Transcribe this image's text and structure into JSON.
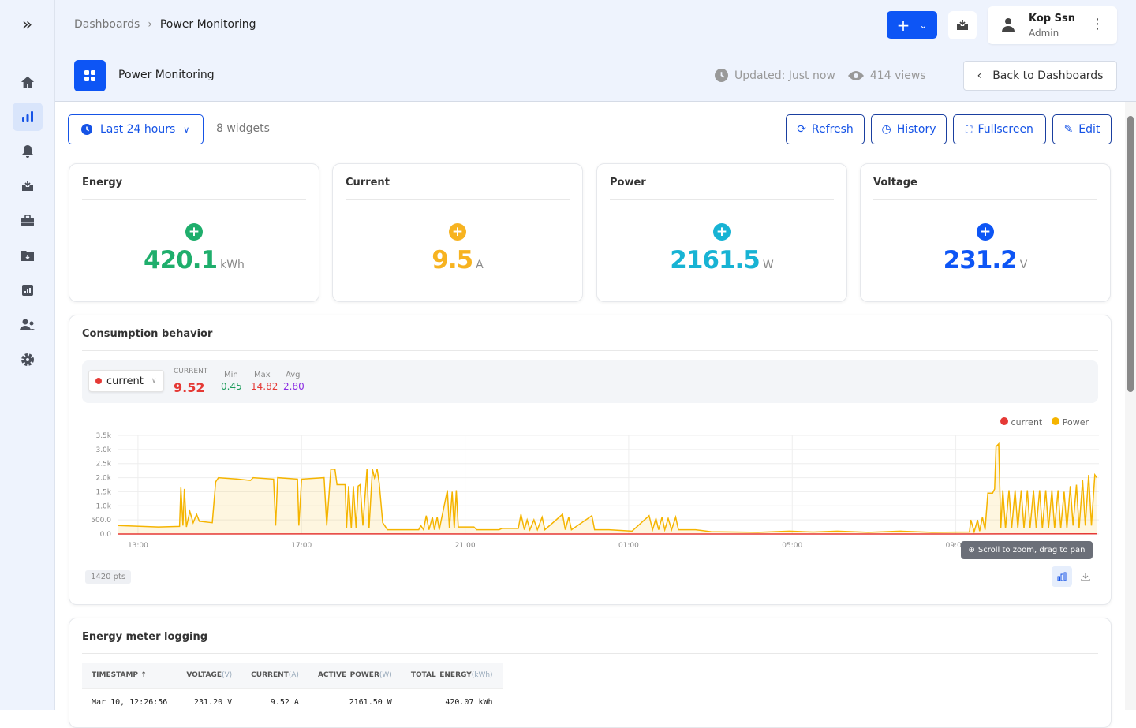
{
  "header": {
    "breadcrumb": [
      "Dashboards",
      "Power Monitoring"
    ],
    "user": {
      "name": "Kop Ssn",
      "role": "Admin"
    }
  },
  "subheader": {
    "title": "Power Monitoring",
    "updated": "Updated: Just now",
    "views": "414 views",
    "back_label": "Back to Dashboards"
  },
  "toolbar": {
    "range": "Last 24 hours",
    "widgets": "8 widgets",
    "refresh": "Refresh",
    "history": "History",
    "fullscreen": "Fullscreen",
    "edit": "Edit"
  },
  "kpis": [
    {
      "title": "Energy",
      "value": "420.1",
      "unit": "kWh",
      "color": "#1fae6c"
    },
    {
      "title": "Current",
      "value": "9.5",
      "unit": "A",
      "color": "#f7b320"
    },
    {
      "title": "Power",
      "value": "2161.5",
      "unit": "W",
      "color": "#17b3d4"
    },
    {
      "title": "Voltage",
      "value": "231.2",
      "unit": "V",
      "color": "#0d55f5"
    }
  ],
  "consumption": {
    "title": "Consumption behavior",
    "selected": "current",
    "current_label": "CURRENT",
    "current_value": "9.52",
    "min_label": "Min",
    "min": "0.45",
    "max_label": "Max",
    "max": "14.82",
    "avg_label": "Avg",
    "avg": "2.80",
    "hint": "Scroll to zoom, drag to pan",
    "points": "1420 pts"
  },
  "chart_data": {
    "type": "area",
    "xlim": [
      "12:30",
      "12:30"
    ],
    "ylim": [
      0,
      3500
    ],
    "yticks": [
      "0.0",
      "500.0",
      "1.0k",
      "1.5k",
      "2.0k",
      "2.5k",
      "3.0k",
      "3.5k"
    ],
    "xticks": [
      "13:00",
      "17:00",
      "21:00",
      "01:00",
      "05:00",
      "09:00"
    ],
    "grid": true,
    "legend": "top-right",
    "series": [
      {
        "name": "current",
        "color": "#e53935",
        "points": [
          [
            "12:30",
            1
          ],
          [
            "18:00",
            3
          ],
          [
            "00:00",
            1
          ],
          [
            "09:00",
            1
          ],
          [
            "12:27",
            9.52
          ]
        ]
      },
      {
        "name": "Power",
        "color": "#f5b400",
        "points": [
          [
            "12:30",
            300
          ],
          [
            "13:30",
            250
          ],
          [
            "14:01",
            270
          ],
          [
            "14:03",
            1650
          ],
          [
            "14:06",
            300
          ],
          [
            "14:08",
            1600
          ],
          [
            "14:11",
            250
          ],
          [
            "14:16",
            800
          ],
          [
            "14:21",
            400
          ],
          [
            "14:26",
            700
          ],
          [
            "14:30",
            450
          ],
          [
            "14:49",
            400
          ],
          [
            "14:54",
            1850
          ],
          [
            "14:58",
            2000
          ],
          [
            "15:26",
            1950
          ],
          [
            "15:45",
            1900
          ],
          [
            "15:49",
            2000
          ],
          [
            "16:19",
            1950
          ],
          [
            "16:22",
            300
          ],
          [
            "16:25",
            2000
          ],
          [
            "16:54",
            1950
          ],
          [
            "16:56",
            300
          ],
          [
            "17:00",
            1950
          ],
          [
            "17:33",
            2000
          ],
          [
            "17:37",
            300
          ],
          [
            "17:43",
            2300
          ],
          [
            "17:49",
            2300
          ],
          [
            "17:52",
            1750
          ],
          [
            "18:04",
            1750
          ],
          [
            "18:06",
            200
          ],
          [
            "18:09",
            1700
          ],
          [
            "18:13",
            200
          ],
          [
            "18:16",
            1700
          ],
          [
            "18:20",
            200
          ],
          [
            "18:23",
            1700
          ],
          [
            "18:26",
            1750
          ],
          [
            "18:30",
            300
          ],
          [
            "18:36",
            2300
          ],
          [
            "18:39",
            200
          ],
          [
            "18:44",
            2300
          ],
          [
            "18:47",
            2000
          ],
          [
            "18:51",
            2300
          ],
          [
            "18:54",
            1800
          ],
          [
            "18:59",
            400
          ],
          [
            "19:02",
            300
          ],
          [
            "19:06",
            150
          ],
          [
            "19:52",
            150
          ],
          [
            "19:55",
            300
          ],
          [
            "19:59",
            150
          ],
          [
            "20:03",
            650
          ],
          [
            "20:07",
            150
          ],
          [
            "20:12",
            600
          ],
          [
            "20:15",
            150
          ],
          [
            "20:19",
            600
          ],
          [
            "20:22",
            150
          ],
          [
            "20:34",
            1550
          ],
          [
            "20:37",
            200
          ],
          [
            "20:41",
            1500
          ],
          [
            "20:44",
            200
          ],
          [
            "20:47",
            1550
          ],
          [
            "20:50",
            250
          ],
          [
            "21:13",
            250
          ],
          [
            "21:17",
            150
          ],
          [
            "21:50",
            150
          ],
          [
            "21:54",
            200
          ],
          [
            "22:18",
            200
          ],
          [
            "22:22",
            700
          ],
          [
            "22:27",
            150
          ],
          [
            "22:31",
            500
          ],
          [
            "22:35",
            150
          ],
          [
            "22:41",
            500
          ],
          [
            "22:46",
            150
          ],
          [
            "22:53",
            600
          ],
          [
            "22:57",
            150
          ],
          [
            "23:23",
            700
          ],
          [
            "23:27",
            150
          ],
          [
            "23:32",
            600
          ],
          [
            "23:36",
            150
          ],
          [
            "00:06",
            650
          ],
          [
            "00:10",
            150
          ],
          [
            "00:31",
            150
          ],
          [
            "01:05",
            100
          ],
          [
            "01:30",
            650
          ],
          [
            "01:35",
            150
          ],
          [
            "01:40",
            550
          ],
          [
            "01:44",
            150
          ],
          [
            "01:49",
            600
          ],
          [
            "01:53",
            150
          ],
          [
            "01:58",
            550
          ],
          [
            "02:03",
            150
          ],
          [
            "02:09",
            600
          ],
          [
            "02:13",
            150
          ],
          [
            "02:38",
            150
          ],
          [
            "03:01",
            80
          ],
          [
            "04:10",
            60
          ],
          [
            "04:56",
            100
          ],
          [
            "05:31",
            70
          ],
          [
            "06:06",
            100
          ],
          [
            "06:52",
            60
          ],
          [
            "07:39",
            100
          ],
          [
            "08:25",
            60
          ],
          [
            "09:20",
            70
          ],
          [
            "09:22",
            500
          ],
          [
            "09:27",
            80
          ],
          [
            "09:32",
            500
          ],
          [
            "09:35",
            100
          ],
          [
            "09:39",
            600
          ],
          [
            "09:43",
            150
          ],
          [
            "09:47",
            1450
          ],
          [
            "09:54",
            1450
          ],
          [
            "09:57",
            1600
          ],
          [
            "09:59",
            3100
          ],
          [
            "10:03",
            3200
          ],
          [
            "10:06",
            200
          ],
          [
            "10:09",
            1550
          ],
          [
            "10:13",
            200
          ],
          [
            "10:18",
            1550
          ],
          [
            "10:22",
            200
          ],
          [
            "10:27",
            1550
          ],
          [
            "10:31",
            200
          ],
          [
            "10:36",
            1550
          ],
          [
            "10:40",
            200
          ],
          [
            "10:45",
            1550
          ],
          [
            "10:49",
            200
          ],
          [
            "10:54",
            1550
          ],
          [
            "10:58",
            200
          ],
          [
            "11:03",
            1550
          ],
          [
            "11:07",
            200
          ],
          [
            "11:12",
            1550
          ],
          [
            "11:16",
            200
          ],
          [
            "11:21",
            1550
          ],
          [
            "11:25",
            200
          ],
          [
            "11:30",
            1550
          ],
          [
            "11:34",
            200
          ],
          [
            "11:39",
            1500
          ],
          [
            "11:43",
            200
          ],
          [
            "11:48",
            1700
          ],
          [
            "11:52",
            300
          ],
          [
            "11:57",
            1750
          ],
          [
            "12:01",
            200
          ],
          [
            "12:06",
            1900
          ],
          [
            "12:10",
            300
          ],
          [
            "12:15",
            2100
          ],
          [
            "12:19",
            300
          ],
          [
            "12:24",
            2100
          ],
          [
            "12:27",
            2000
          ]
        ]
      }
    ]
  },
  "table": {
    "title": "Energy meter logging",
    "columns": [
      {
        "label": "TIMESTAMP",
        "unit": "",
        "sort": "↑"
      },
      {
        "label": "VOLTAGE",
        "unit": "(V)"
      },
      {
        "label": "CURRENT",
        "unit": "(A)"
      },
      {
        "label": "ACTIVE_POWER",
        "unit": "(W)"
      },
      {
        "label": "TOTAL_ENERGY",
        "unit": "(kWh)"
      }
    ],
    "rows": [
      [
        "Mar 10, 12:26:56",
        "231.20 V",
        "9.52 A",
        "2161.50 W",
        "420.07 kWh"
      ]
    ]
  }
}
